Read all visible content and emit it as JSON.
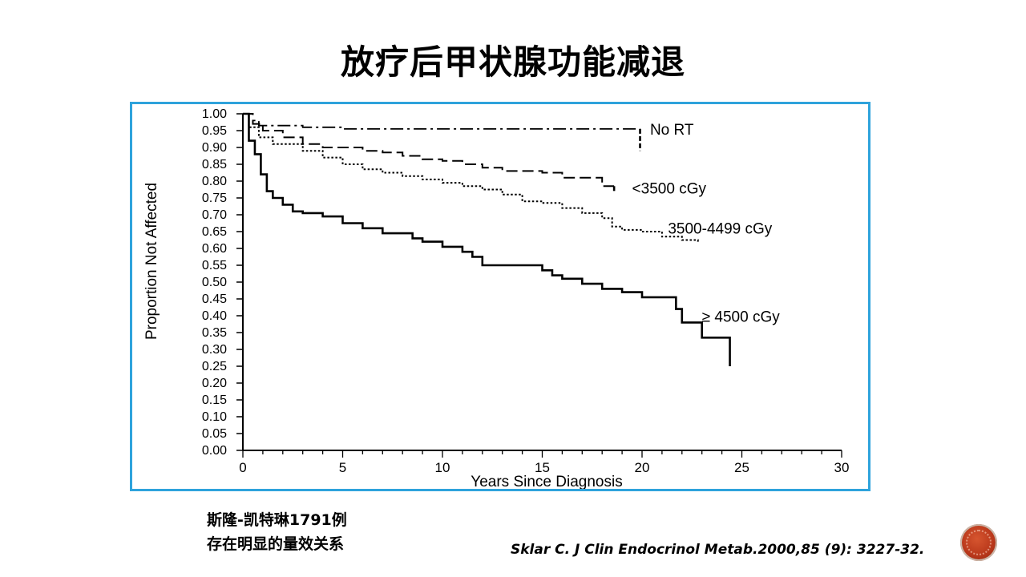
{
  "slide": {
    "title": "放疗后甲状腺功能减退",
    "note_line1": "斯隆-凯特琳1791例",
    "note_line2": "存在明显的量效关系",
    "citation": "Sklar C. J Clin Endocrinol Metab.2000,85 (9): 3227-32."
  },
  "colors": {
    "frame": "#2ea3dc",
    "badge": "#b9381b"
  },
  "chart_data": {
    "type": "line",
    "title": "",
    "xlabel": "Years Since Diagnosis",
    "ylabel": "Proportion Not Affected",
    "xlim": [
      0,
      30
    ],
    "ylim": [
      0,
      1
    ],
    "x_ticks": [
      "0",
      "5",
      "10",
      "15",
      "20",
      "25",
      "30"
    ],
    "y_ticks": [
      "0.00",
      "0.05",
      "0.10",
      "0.15",
      "0.20",
      "0.25",
      "0.30",
      "0.35",
      "0.40",
      "0.45",
      "0.50",
      "0.55",
      "0.60",
      "0.65",
      "0.70",
      "0.75",
      "0.80",
      "0.85",
      "0.90",
      "0.95",
      "1.00"
    ],
    "grid": false,
    "legend": "labels next to curves",
    "series": [
      {
        "name": "No RT",
        "style": "dash-dot",
        "points": [
          [
            0,
            1.0
          ],
          [
            0.3,
            0.98
          ],
          [
            0.8,
            0.965
          ],
          [
            3,
            0.96
          ],
          [
            5,
            0.955
          ],
          [
            10,
            0.955
          ],
          [
            15,
            0.955
          ],
          [
            19.9,
            0.955
          ]
        ],
        "censor_x": 19.9,
        "censor_y_range": [
          0.89,
          0.955
        ]
      },
      {
        "name": "<3500 cGy",
        "style": "dashed",
        "points": [
          [
            0,
            1.0
          ],
          [
            0.5,
            0.97
          ],
          [
            1,
            0.95
          ],
          [
            2,
            0.93
          ],
          [
            3,
            0.91
          ],
          [
            4,
            0.9
          ],
          [
            6,
            0.89
          ],
          [
            7,
            0.885
          ],
          [
            8,
            0.875
          ],
          [
            9,
            0.865
          ],
          [
            10,
            0.86
          ],
          [
            11,
            0.85
          ],
          [
            12,
            0.84
          ],
          [
            13,
            0.83
          ],
          [
            15,
            0.825
          ],
          [
            16,
            0.81
          ],
          [
            18,
            0.785
          ],
          [
            18.6,
            0.785
          ]
        ],
        "censor_x": 18.6,
        "censor_y_range": [
          0.765,
          0.785
        ]
      },
      {
        "name": "3500-4499 cGy",
        "style": "dotted",
        "points": [
          [
            0,
            1.0
          ],
          [
            0.3,
            0.96
          ],
          [
            0.8,
            0.93
          ],
          [
            1.5,
            0.91
          ],
          [
            3,
            0.89
          ],
          [
            4,
            0.87
          ],
          [
            5,
            0.85
          ],
          [
            6,
            0.835
          ],
          [
            7,
            0.825
          ],
          [
            8,
            0.815
          ],
          [
            9,
            0.805
          ],
          [
            10,
            0.795
          ],
          [
            11,
            0.785
          ],
          [
            12,
            0.775
          ],
          [
            13,
            0.76
          ],
          [
            14,
            0.74
          ],
          [
            15,
            0.735
          ],
          [
            16,
            0.72
          ],
          [
            17,
            0.705
          ],
          [
            18,
            0.69
          ],
          [
            18.5,
            0.665
          ],
          [
            19,
            0.655
          ],
          [
            20,
            0.65
          ],
          [
            21,
            0.635
          ],
          [
            22,
            0.625
          ],
          [
            22.8,
            0.62
          ]
        ]
      },
      {
        "name": "≥ 4500 cGy",
        "style": "solid",
        "points": [
          [
            0,
            1.0
          ],
          [
            0.3,
            0.92
          ],
          [
            0.6,
            0.88
          ],
          [
            0.9,
            0.82
          ],
          [
            1.2,
            0.77
          ],
          [
            1.5,
            0.75
          ],
          [
            2,
            0.73
          ],
          [
            2.5,
            0.71
          ],
          [
            3,
            0.705
          ],
          [
            4,
            0.695
          ],
          [
            5,
            0.675
          ],
          [
            6,
            0.66
          ],
          [
            7,
            0.645
          ],
          [
            8,
            0.645
          ],
          [
            8.5,
            0.63
          ],
          [
            9,
            0.62
          ],
          [
            10,
            0.605
          ],
          [
            11,
            0.59
          ],
          [
            11.5,
            0.575
          ],
          [
            12,
            0.55
          ],
          [
            15,
            0.535
          ],
          [
            15.5,
            0.52
          ],
          [
            16,
            0.51
          ],
          [
            17,
            0.495
          ],
          [
            18,
            0.48
          ],
          [
            19,
            0.47
          ],
          [
            20,
            0.455
          ],
          [
            21.3,
            0.455
          ],
          [
            21.7,
            0.42
          ],
          [
            22,
            0.38
          ],
          [
            23,
            0.335
          ],
          [
            24.4,
            0.335
          ],
          [
            24.4,
            0.25
          ]
        ]
      }
    ]
  }
}
